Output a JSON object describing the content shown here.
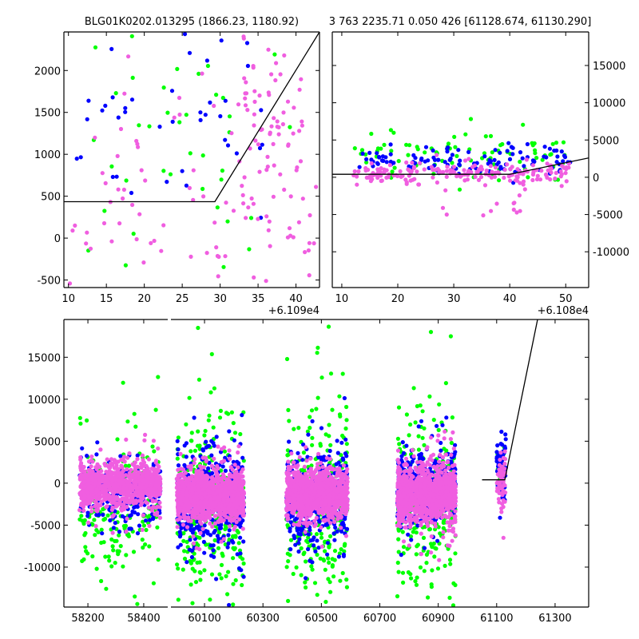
{
  "colors": {
    "blue": "#0000ff",
    "green": "#00ff00",
    "pink": "#f05ee0",
    "line": "#000000"
  },
  "chart_data": [
    {
      "id": "top-left",
      "type": "scatter",
      "title": "BLG01K0202.013295 (1866.23, 1180.92)",
      "xlim": [
        9.4,
        43.1
      ],
      "ylim": [
        -590,
        2460
      ],
      "xticks": [
        10,
        15,
        20,
        25,
        30,
        35,
        40
      ],
      "yticks": [
        -500,
        0,
        500,
        1000,
        1500,
        2000
      ],
      "x_offset_label": "+6.109e4",
      "yaxis_side": "left",
      "model_line": [
        [
          9.4,
          435
        ],
        [
          29.3,
          435
        ],
        [
          43.1,
          2460
        ]
      ],
      "clusters": [
        {
          "color": "pink",
          "x": [
            10,
            43
          ],
          "y_mean": 400,
          "y_sd": 500,
          "n": 90
        },
        {
          "color": "pink",
          "x": [
            33,
            41
          ],
          "y_mean": 1500,
          "y_sd": 450,
          "n": 60
        },
        {
          "color": "blue",
          "x": [
            10,
            36
          ],
          "y_mean": 1600,
          "y_sd": 600,
          "n": 45
        },
        {
          "color": "green",
          "x": [
            10,
            40
          ],
          "y_mean": 1300,
          "y_sd": 900,
          "n": 40
        }
      ]
    },
    {
      "id": "top-right",
      "type": "scatter",
      "title": "3 763 2235.71 0.050 426 [61128.674, 61130.290]",
      "xlim": [
        8.3,
        54.1
      ],
      "ylim": [
        -14800,
        19500
      ],
      "xticks": [
        10,
        20,
        30,
        40,
        50
      ],
      "yticks": [
        -10000,
        -5000,
        0,
        5000,
        10000,
        15000
      ],
      "x_offset_label": "+6.108e4",
      "yaxis_side": "right",
      "model_line": [
        [
          8.3,
          400
        ],
        [
          40,
          400
        ],
        [
          54.1,
          2600
        ]
      ],
      "clusters": [
        {
          "color": "pink",
          "x": [
            12,
            51
          ],
          "y_mean": 500,
          "y_sd": 700,
          "n": 180
        },
        {
          "color": "blue",
          "x": [
            12,
            51
          ],
          "y_mean": 2200,
          "y_sd": 900,
          "n": 120
        },
        {
          "color": "green",
          "x": [
            12,
            51
          ],
          "y_mean": 2600,
          "y_sd": 1400,
          "n": 90
        },
        {
          "color": "pink",
          "x": [
            27,
            44
          ],
          "y_mean": -3000,
          "y_sd": 1500,
          "n": 14
        }
      ]
    },
    {
      "id": "bottom",
      "type": "scatter",
      "title": "",
      "broken_x": [
        [
          58114,
          58486
        ],
        [
          59985,
          61415
        ]
      ],
      "ylim": [
        -14760,
        19500
      ],
      "xticks": [
        [
          58200,
          58400
        ],
        [
          60100,
          60300,
          60500,
          60700,
          60900,
          61100,
          61300
        ]
      ],
      "yticks": [
        -10000,
        -5000,
        0,
        5000,
        10000,
        15000
      ],
      "yaxis_side": "left",
      "model_line": [
        [
          61050,
          400
        ],
        [
          61128,
          400
        ],
        [
          61240,
          19500
        ]
      ],
      "clusters": [
        {
          "color": "green",
          "x": [
            58170,
            58460
          ],
          "y_mean": -2500,
          "y_sd": 4500,
          "n": 200
        },
        {
          "color": "blue",
          "x": [
            58170,
            58460
          ],
          "y_mean": -1200,
          "y_sd": 1800,
          "n": 250
        },
        {
          "color": "pink",
          "x": [
            58170,
            58460
          ],
          "y_mean": -200,
          "y_sd": 1200,
          "n": 900
        },
        {
          "color": "green",
          "x": [
            60005,
            60235
          ],
          "y_mean": -3000,
          "y_sd": 5000,
          "n": 300
        },
        {
          "color": "blue",
          "x": [
            60005,
            60235
          ],
          "y_mean": -2000,
          "y_sd": 2800,
          "n": 400
        },
        {
          "color": "pink",
          "x": [
            60005,
            60235
          ],
          "y_mean": -1500,
          "y_sd": 1300,
          "n": 1200
        },
        {
          "color": "green",
          "x": [
            60380,
            60590
          ],
          "y_mean": -2500,
          "y_sd": 5000,
          "n": 300
        },
        {
          "color": "blue",
          "x": [
            60380,
            60590
          ],
          "y_mean": -1600,
          "y_sd": 2600,
          "n": 400
        },
        {
          "color": "pink",
          "x": [
            60380,
            60590
          ],
          "y_mean": -1300,
          "y_sd": 1300,
          "n": 1100
        },
        {
          "color": "green",
          "x": [
            60760,
            60960
          ],
          "y_mean": -2200,
          "y_sd": 4500,
          "n": 280
        },
        {
          "color": "blue",
          "x": [
            60760,
            60960
          ],
          "y_mean": -600,
          "y_sd": 2200,
          "n": 400
        },
        {
          "color": "pink",
          "x": [
            60760,
            60960
          ],
          "y_mean": -1300,
          "y_sd": 1500,
          "n": 1100
        },
        {
          "color": "blue",
          "x": [
            61100,
            61132
          ],
          "y_mean": 2000,
          "y_sd": 1800,
          "n": 60
        },
        {
          "color": "pink",
          "x": [
            61100,
            61130
          ],
          "y_mean": 200,
          "y_sd": 1500,
          "n": 60
        },
        {
          "color": "green",
          "x": [
            61100,
            61130
          ],
          "y_mean": 2500,
          "y_sd": 1500,
          "n": 15
        }
      ]
    }
  ]
}
